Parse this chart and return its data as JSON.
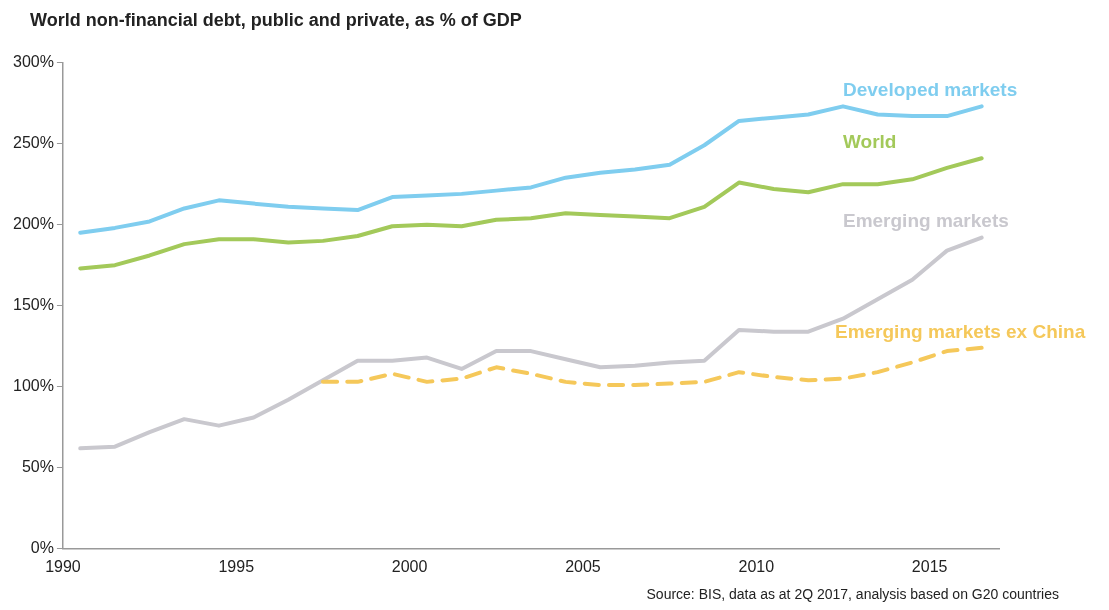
{
  "chart_data": {
    "type": "line",
    "title": "World non-financial debt, public and private, as % of GDP",
    "annotations": [
      "Source: BIS, data as at 2Q 2017, analysis based on G20 countries"
    ],
    "x": [
      1990.5,
      1991.5,
      1992.5,
      1993.5,
      1994.5,
      1995.5,
      1996.5,
      1997.5,
      1998.5,
      1999.5,
      2000.5,
      2001.5,
      2002.5,
      2003.5,
      2004.5,
      2005.5,
      2006.5,
      2007.5,
      2008.5,
      2009.5,
      2010.5,
      2011.5,
      2012.5,
      2013.5,
      2014.5,
      2015.5,
      2016.5
    ],
    "series": [
      {
        "name": "Developed markets",
        "color": "#7fcdef",
        "values": [
          195,
          198,
          202,
          210,
          215,
          213,
          211,
          210,
          209,
          217,
          218,
          219,
          221,
          223,
          229,
          232,
          234,
          237,
          249,
          264,
          266,
          268,
          273,
          268,
          267,
          267,
          273
        ]
      },
      {
        "name": "World",
        "color": "#a3c95a",
        "values": [
          173,
          175,
          181,
          188,
          191,
          191,
          189,
          190,
          193,
          199,
          200,
          199,
          203,
          204,
          207,
          206,
          205,
          204,
          211,
          226,
          222,
          220,
          225,
          225,
          228,
          235,
          241
        ]
      },
      {
        "name": "Emerging markets",
        "color": "#c9c8ce",
        "values": [
          62,
          63,
          72,
          80,
          76,
          81,
          92,
          104,
          116,
          116,
          118,
          111,
          122,
          122,
          117,
          112,
          113,
          115,
          116,
          135,
          134,
          134,
          142,
          154,
          166,
          184,
          192
        ]
      },
      {
        "name": "Emerging markets ex China",
        "color": "#f5c85a",
        "line_style": "dashed",
        "values": [
          null,
          null,
          null,
          null,
          null,
          null,
          null,
          103,
          103,
          108,
          103,
          105,
          112,
          108,
          103,
          101,
          101,
          102,
          103,
          109,
          106,
          104,
          105,
          109,
          115,
          122,
          124
        ]
      }
    ],
    "xlim": [
      1990,
      2017
    ],
    "xticks": [
      1990,
      1995,
      2000,
      2005,
      2010,
      2015
    ],
    "ylim": [
      0,
      300
    ],
    "yticks": [
      {
        "value": 0,
        "label": "0%"
      },
      {
        "value": 50,
        "label": "50%"
      },
      {
        "value": 100,
        "label": "100%"
      },
      {
        "value": 150,
        "label": "150%"
      },
      {
        "value": 200,
        "label": "200%"
      },
      {
        "value": 250,
        "label": "250%"
      },
      {
        "value": 300,
        "label": "300%"
      }
    ],
    "grid": false,
    "marker": "none",
    "line_style": "solid"
  }
}
